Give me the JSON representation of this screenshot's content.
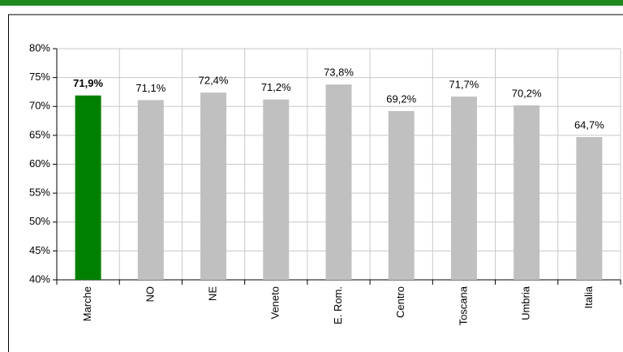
{
  "chart_data": {
    "type": "bar",
    "categories": [
      "Marche",
      "NO",
      "NE",
      "Veneto",
      "E. Rom.",
      "Centro",
      "Toscana",
      "Umbria",
      "Italia"
    ],
    "values": [
      71.9,
      71.1,
      72.4,
      71.2,
      73.8,
      69.2,
      71.7,
      70.2,
      64.7
    ],
    "value_labels": [
      "71,9%",
      "71,1%",
      "72,4%",
      "71,2%",
      "73,8%",
      "69,2%",
      "71,7%",
      "70,2%",
      "64,7%"
    ],
    "color": "#c0c0c0",
    "colors": [
      "#008000",
      "#c0c0c0",
      "#c0c0c0",
      "#c0c0c0",
      "#c0c0c0",
      "#c0c0c0",
      "#c0c0c0",
      "#c0c0c0",
      "#c0c0c0"
    ],
    "ylim": [
      40,
      80
    ],
    "yticks": [
      {
        "value": 40,
        "label": "40%"
      },
      {
        "value": 45,
        "label": "45%"
      },
      {
        "value": 50,
        "label": "50%"
      },
      {
        "value": 55,
        "label": "55%"
      },
      {
        "value": 60,
        "label": "60%"
      },
      {
        "value": 65,
        "label": "65%"
      },
      {
        "value": 70,
        "label": "70%"
      },
      {
        "value": 75,
        "label": "75%"
      },
      {
        "value": 80,
        "label": "80%"
      }
    ],
    "grid": true
  }
}
